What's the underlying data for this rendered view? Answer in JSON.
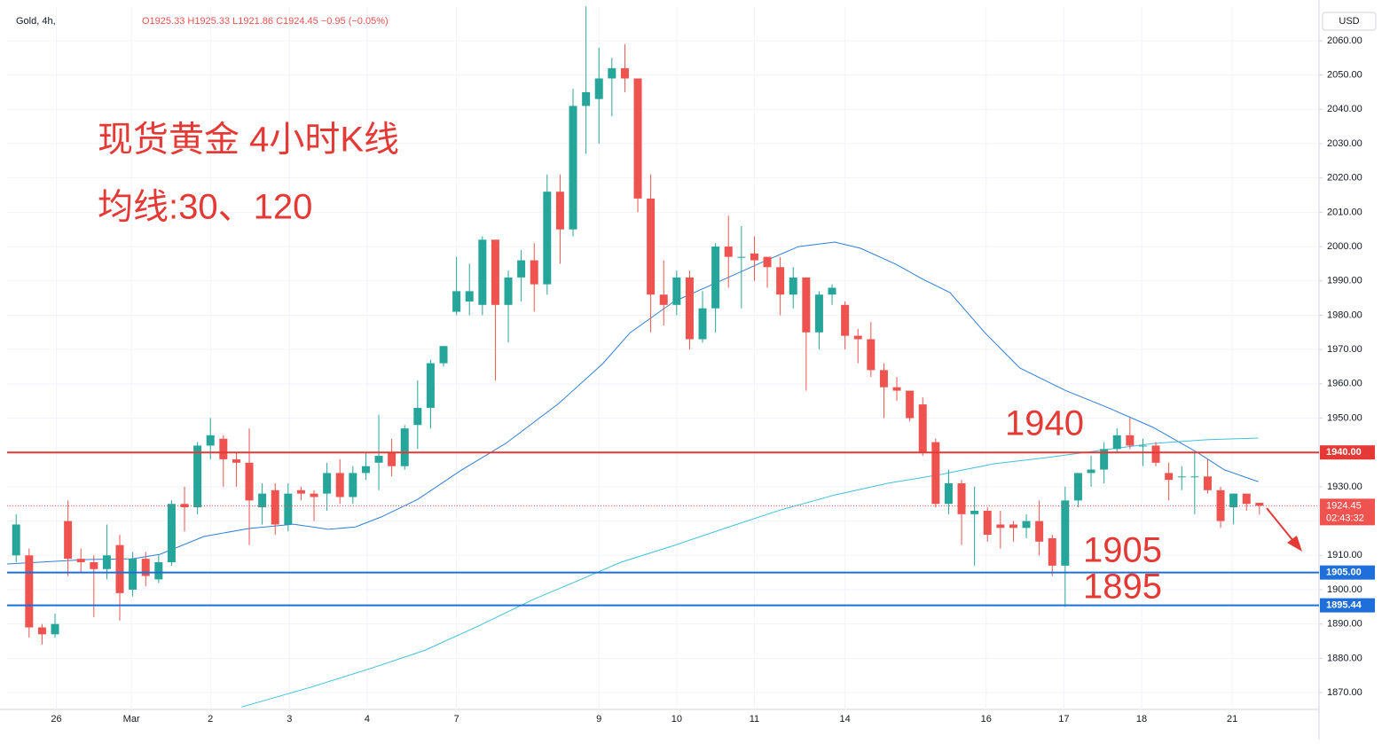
{
  "header": {
    "symbol": "Gold, 4h,",
    "ohlc": "O1925.33 H1925.33 L1921.86 C1924.45 −0.95 (−0.05%)",
    "currency": "USD"
  },
  "chart_data": {
    "type": "candlestick",
    "annotations": [
      "现货黄金 4小时K线",
      "均线:30、120",
      "1940",
      "1905",
      "1895"
    ],
    "up_color": "#26a69a",
    "down_color": "#ef5350",
    "ohlc": [
      [
        1910,
        1922,
        1908,
        1919
      ],
      [
        1910,
        1912,
        1886,
        1889
      ],
      [
        1889,
        1890,
        1884,
        1887
      ],
      [
        1887,
        1893,
        1886,
        1890
      ],
      [
        1920,
        1926,
        1904,
        1909
      ],
      [
        1909,
        1912,
        1905,
        1908
      ],
      [
        1908,
        1910,
        1892,
        1906
      ],
      [
        1906,
        1919,
        1903,
        1910
      ],
      [
        1913,
        1916,
        1891,
        1899
      ],
      [
        1900,
        1911,
        1898,
        1909
      ],
      [
        1909,
        1911,
        1901,
        1904
      ],
      [
        1903,
        1910,
        1902,
        1908
      ],
      [
        1908,
        1926,
        1907,
        1925
      ],
      [
        1925,
        1930,
        1917,
        1924
      ],
      [
        1924,
        1943,
        1922,
        1942
      ],
      [
        1942,
        1950,
        1938,
        1945
      ],
      [
        1944,
        1945,
        1930,
        1938
      ],
      [
        1938,
        1940,
        1930,
        1937
      ],
      [
        1937,
        1947,
        1913,
        1926
      ],
      [
        1924,
        1931,
        1919,
        1928
      ],
      [
        1929,
        1931,
        1916,
        1919
      ],
      [
        1919,
        1931,
        1917,
        1928
      ],
      [
        1929,
        1930,
        1926,
        1928
      ],
      [
        1928,
        1929,
        1920,
        1927
      ],
      [
        1928,
        1937,
        1923,
        1934
      ],
      [
        1934,
        1938,
        1925,
        1927
      ],
      [
        1927,
        1936,
        1925,
        1934
      ],
      [
        1934,
        1940,
        1932,
        1936
      ],
      [
        1937,
        1951,
        1929,
        1939
      ],
      [
        1940,
        1944,
        1933,
        1936
      ],
      [
        1936,
        1948,
        1935,
        1947
      ],
      [
        1948,
        1961,
        1941,
        1953
      ],
      [
        1953,
        1967,
        1947,
        1966
      ],
      [
        1966,
        1971,
        1965,
        1971
      ],
      [
        1981,
        1997,
        1980,
        1987
      ],
      [
        1984,
        1995,
        1980,
        1987
      ],
      [
        1983,
        2003,
        1980,
        2002
      ],
      [
        2002,
        2002,
        1961,
        1983
      ],
      [
        1983,
        1993,
        1972,
        1991
      ],
      [
        1991,
        1999,
        1984,
        1996
      ],
      [
        1996,
        2001,
        1981,
        1989
      ],
      [
        1989,
        2021,
        1986,
        2016
      ],
      [
        2016,
        2021,
        1995,
        2005
      ],
      [
        2005,
        2046,
        2003,
        2041
      ],
      [
        2041,
        2070,
        2027,
        2045
      ],
      [
        2043,
        2058,
        2030,
        2049
      ],
      [
        2049,
        2055,
        2038,
        2052
      ],
      [
        2052,
        2059,
        2045,
        2049
      ],
      [
        2049,
        2049,
        2010,
        2014
      ],
      [
        2014,
        2021,
        1975,
        1986
      ],
      [
        1986,
        1996,
        1977,
        1983
      ],
      [
        1983,
        1993,
        1980,
        1991
      ],
      [
        1991,
        1993,
        1970,
        1973
      ],
      [
        1973,
        1987,
        1972,
        1982
      ],
      [
        1982,
        2001,
        1975,
        2000
      ],
      [
        2000,
        2009,
        1988,
        1997
      ],
      [
        1997,
        2006,
        1982,
        1997
      ],
      [
        1998,
        2003,
        1990,
        1996
      ],
      [
        1997,
        1997,
        1988,
        1994
      ],
      [
        1994,
        1997,
        1980,
        1986
      ],
      [
        1986,
        1994,
        1982,
        1991
      ],
      [
        1991,
        1991,
        1958,
        1975
      ],
      [
        1975,
        1987,
        1970,
        1986
      ],
      [
        1986,
        1989,
        1983,
        1988
      ],
      [
        1983,
        1984,
        1970,
        1974
      ],
      [
        1974,
        1976,
        1966,
        1973
      ],
      [
        1973,
        1978,
        1962,
        1964
      ],
      [
        1964,
        1966,
        1950,
        1959
      ],
      [
        1959,
        1962,
        1955,
        1958
      ],
      [
        1958,
        1958,
        1949,
        1950
      ],
      [
        1954,
        1956,
        1939,
        1940
      ],
      [
        1943,
        1944,
        1924,
        1925
      ],
      [
        1925,
        1935,
        1922,
        1931
      ],
      [
        1931,
        1932,
        1913,
        1922
      ],
      [
        1922,
        1930,
        1907,
        1923
      ],
      [
        1923,
        1924,
        1914,
        1916
      ],
      [
        1919,
        1923,
        1912,
        1918
      ],
      [
        1919,
        1920,
        1914,
        1918
      ],
      [
        1918,
        1922,
        1915,
        1920
      ],
      [
        1920,
        1926,
        1910,
        1914
      ],
      [
        1915,
        1916,
        1904,
        1907
      ],
      [
        1907,
        1930,
        1895,
        1926
      ],
      [
        1926,
        1934,
        1924,
        1934
      ],
      [
        1934,
        1939,
        1930,
        1935
      ],
      [
        1935,
        1943,
        1931,
        1941
      ],
      [
        1941,
        1947,
        1940,
        1945
      ],
      [
        1945,
        1950,
        1941,
        1942
      ],
      [
        1942,
        1944,
        1936,
        1942
      ],
      [
        1942,
        1943,
        1936,
        1937
      ],
      [
        1934,
        1937,
        1926,
        1932
      ],
      [
        1933,
        1936,
        1929,
        1933
      ],
      [
        1933,
        1940,
        1922,
        1933
      ],
      [
        1933,
        1938,
        1928,
        1929
      ],
      [
        1929,
        1930,
        1918,
        1920
      ],
      [
        1924,
        1928,
        1919,
        1928
      ],
      [
        1928,
        1928,
        1923,
        1925
      ],
      [
        1925.33,
        1925.33,
        1921.86,
        1924.45
      ]
    ],
    "series": [
      {
        "color": "#2f7fd8",
        "x": [
          -0.7,
          5.6,
          9.0,
          11.1,
          14.5,
          17.9,
          21.4,
          24.1,
          26.2,
          28.2,
          31.0,
          34.4,
          37.8,
          41.9,
          45.3,
          47.4,
          50.8,
          54.2,
          57.7,
          60.4,
          63.2,
          65.2,
          67.9,
          70.0,
          72.1,
          74.8,
          77.5,
          81.0,
          84.4,
          87.8,
          91.2,
          93.3,
          95.9
        ],
        "values": [
          1907.5,
          1908.8,
          1909.0,
          1910.3,
          1915.5,
          1917.8,
          1919.1,
          1917.6,
          1918.3,
          1921.2,
          1926.3,
          1934.9,
          1942.6,
          1954.3,
          1965.9,
          1974.9,
          1984.0,
          1989.7,
          1995.6,
          2000.0,
          2001.3,
          1999.5,
          1994.9,
          1990.5,
          1986.6,
          1974.9,
          1964.6,
          1958.1,
          1952.9,
          1947.3,
          1940.0,
          1934.9,
          1931.5
        ]
      },
      {
        "color": "#3fc1d9",
        "x": [
          17.4,
          22.7,
          27.5,
          31.6,
          35.8,
          39.9,
          43.3,
          46.7,
          50.8,
          54.9,
          59.0,
          63.2,
          67.3,
          71.4,
          75.5,
          79.6,
          83.7,
          87.8,
          91.9,
          95.9
        ],
        "values": [
          1865.8,
          1871.5,
          1877.2,
          1882.4,
          1889.6,
          1897.1,
          1902.5,
          1908.0,
          1912.9,
          1918.1,
          1923.2,
          1927.6,
          1931.0,
          1933.6,
          1936.7,
          1938.5,
          1940.6,
          1942.6,
          1943.7,
          1944.2
        ]
      }
    ],
    "xlim": [
      -0.7,
      100.6
    ],
    "xticks": [
      {
        "value": 3.1,
        "label": "26"
      },
      {
        "value": 8.9,
        "label": "Mar"
      },
      {
        "value": 15,
        "label": "2"
      },
      {
        "value": 21.1,
        "label": "3"
      },
      {
        "value": 27.1,
        "label": "4"
      },
      {
        "value": 34,
        "label": "7"
      },
      {
        "value": 45,
        "label": "9"
      },
      {
        "value": 51,
        "label": "10"
      },
      {
        "value": 57,
        "label": "11"
      },
      {
        "value": 64,
        "label": "14"
      },
      {
        "value": 74.9,
        "label": "16"
      },
      {
        "value": 80.9,
        "label": "17"
      },
      {
        "value": 86.9,
        "label": "18"
      },
      {
        "value": 93.9,
        "label": "21"
      }
    ],
    "ylim": [
      1865.1,
      2069.8
    ],
    "yticks": [
      {
        "value": 1870,
        "label": "1870.00"
      },
      {
        "value": 1880,
        "label": "1880.00"
      },
      {
        "value": 1890,
        "label": "1890.00"
      },
      {
        "value": 1900,
        "label": "1900.00"
      },
      {
        "value": 1910,
        "label": "1910.00"
      },
      {
        "value": 1920,
        "label": "1920.00"
      },
      {
        "value": 1930,
        "label": "1930.00"
      },
      {
        "value": 1940,
        "label": "1940.00"
      },
      {
        "value": 1950,
        "label": "1950.00"
      },
      {
        "value": 1960,
        "label": "1960.00"
      },
      {
        "value": 1970,
        "label": "1970.00"
      },
      {
        "value": 1980,
        "label": "1980.00"
      },
      {
        "value": 1990,
        "label": "1990.00"
      },
      {
        "value": 2000,
        "label": "2000.00"
      },
      {
        "value": 2010,
        "label": "2010.00"
      },
      {
        "value": 2020,
        "label": "2020.00"
      },
      {
        "value": 2030,
        "label": "2030.00"
      },
      {
        "value": 2040,
        "label": "2040.00"
      },
      {
        "value": 2050,
        "label": "2050.00"
      },
      {
        "value": 2060,
        "label": "2060.00"
      }
    ],
    "grid": true,
    "hlines": [
      {
        "value": 1940,
        "label": "1940.00",
        "color": "#e53935"
      },
      {
        "value": 1905,
        "label": "1905.00",
        "color": "#1e6fd9"
      },
      {
        "value": 1895.44,
        "label": "1895.44",
        "color": "#1e6fd9"
      }
    ],
    "last_price": {
      "value": 1924.45,
      "label": "1924.45",
      "countdown": "02:43:32",
      "color": "#ef5350"
    }
  }
}
